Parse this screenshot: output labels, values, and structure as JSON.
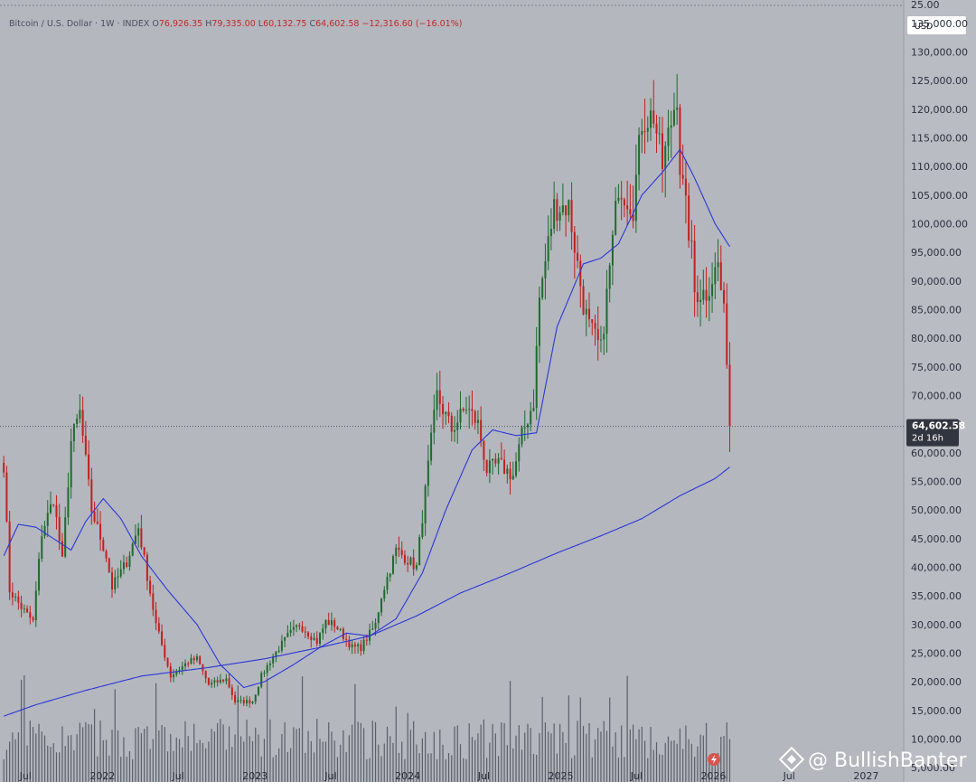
{
  "header": {
    "symbol": "Bitcoin / U.S. Dollar",
    "interval": "1W",
    "source": "INDEX",
    "open_label": "O",
    "open": "76,926.35",
    "high_label": "H",
    "high": "79,335.00",
    "low_label": "L",
    "low": "60,132.75",
    "close_label": "C",
    "close": "64,602.58",
    "change": "−12,316.60 (−16.01%)"
  },
  "currency_badge": "USD",
  "price_tag": {
    "price": "64,602.58",
    "countdown": "2d 16h"
  },
  "watermark": "@ BullishBanter",
  "colors": {
    "background": "#b4b7be",
    "axis_panel": "#b9bcc3",
    "up_candle": "#1e6b2d",
    "down_candle": "#c21f1f",
    "ma_line": "#2b36d9",
    "volume": "#3d414a",
    "price_tag": "#31353f",
    "header_value": "#c02a2a"
  },
  "icons": {
    "watermark_logo": "binance-diamond-icon",
    "replay": "lightning-icon"
  },
  "chart_data": {
    "type": "candlestick",
    "interval": "1W",
    "title": "Bitcoin / U.S. Dollar · 1W · INDEX",
    "ylim": [
      2500,
      137500
    ],
    "yticks": [
      5000,
      10000,
      15000,
      20000,
      25000,
      30000,
      35000,
      40000,
      45000,
      50000,
      55000,
      60000,
      65000,
      70000,
      75000,
      80000,
      85000,
      90000,
      95000,
      100000,
      105000,
      110000,
      115000,
      120000,
      125000,
      130000,
      135000
    ],
    "ytick_labels": [
      "5,000.00",
      "10,000.00",
      "15,000.00",
      "20,000.00",
      "25,000.00",
      "30,000.00",
      "35,000.00",
      "40,000.00",
      "45,000.00",
      "50,000.00",
      "55,000.00",
      "60,000.00",
      "65,000.00",
      "70,000.00",
      "75,000.00",
      "80,000.00",
      "85,000.00",
      "90,000.00",
      "95,000.00",
      "100,000.00",
      "105,000.00",
      "110,000.00",
      "115,000.00",
      "120,000.00",
      "125,000.00",
      "130,000.00",
      "135,000.00"
    ],
    "xlim": [
      "2021-05-01",
      "2027-04-01"
    ],
    "xticks": [
      {
        "date": "2021-07-01",
        "label": "Jul"
      },
      {
        "date": "2022-01-01",
        "label": "2022"
      },
      {
        "date": "2022-07-01",
        "label": "Jul"
      },
      {
        "date": "2023-01-01",
        "label": "2023"
      },
      {
        "date": "2023-07-01",
        "label": "Jul"
      },
      {
        "date": "2024-01-01",
        "label": "2024"
      },
      {
        "date": "2024-07-01",
        "label": "Jul"
      },
      {
        "date": "2025-01-01",
        "label": "2025"
      },
      {
        "date": "2025-07-01",
        "label": "Jul"
      },
      {
        "date": "2026-01-01",
        "label": "2026"
      },
      {
        "date": "2026-07-01",
        "label": "Jul"
      },
      {
        "date": "2027-01-01",
        "label": "2027"
      }
    ],
    "last_price": 64602.58,
    "price_anchors": [
      [
        "2021-05-10",
        58000
      ],
      [
        "2021-05-24",
        36000
      ],
      [
        "2021-06-21",
        33000
      ],
      [
        "2021-07-19",
        30500
      ],
      [
        "2021-08-09",
        46000
      ],
      [
        "2021-09-06",
        52000
      ],
      [
        "2021-09-27",
        41000
      ],
      [
        "2021-10-18",
        62000
      ],
      [
        "2021-11-08",
        67000
      ],
      [
        "2021-12-06",
        50000
      ],
      [
        "2022-01-10",
        42000
      ],
      [
        "2022-01-24",
        36500
      ],
      [
        "2022-02-28",
        41000
      ],
      [
        "2022-03-28",
        47000
      ],
      [
        "2022-05-09",
        30000
      ],
      [
        "2022-06-13",
        21000
      ],
      [
        "2022-07-25",
        23500
      ],
      [
        "2022-08-15",
        24000
      ],
      [
        "2022-09-12",
        19500
      ],
      [
        "2022-10-24",
        20500
      ],
      [
        "2022-11-14",
        16500
      ],
      [
        "2022-12-26",
        16600
      ],
      [
        "2023-01-16",
        21000
      ],
      [
        "2023-02-13",
        24500
      ],
      [
        "2023-03-20",
        28000
      ],
      [
        "2023-04-17",
        30000
      ],
      [
        "2023-05-29",
        27000
      ],
      [
        "2023-06-19",
        30500
      ],
      [
        "2023-07-10",
        30000
      ],
      [
        "2023-08-21",
        26000
      ],
      [
        "2023-09-11",
        26000
      ],
      [
        "2023-10-16",
        30000
      ],
      [
        "2023-10-30",
        35000
      ],
      [
        "2023-12-04",
        43000
      ],
      [
        "2024-01-22",
        40000
      ],
      [
        "2024-02-26",
        62000
      ],
      [
        "2024-03-11",
        70000
      ],
      [
        "2024-04-15",
        64000
      ],
      [
        "2024-05-20",
        68000
      ],
      [
        "2024-06-17",
        65000
      ],
      [
        "2024-07-08",
        57000
      ],
      [
        "2024-08-05",
        58000
      ],
      [
        "2024-09-09",
        56000
      ],
      [
        "2024-09-30",
        63000
      ],
      [
        "2024-10-28",
        69000
      ],
      [
        "2024-11-11",
        87000
      ],
      [
        "2024-12-16",
        103000
      ],
      [
        "2025-01-20",
        103000
      ],
      [
        "2025-02-24",
        86000
      ],
      [
        "2025-03-10",
        82000
      ],
      [
        "2025-04-07",
        78000
      ],
      [
        "2025-05-05",
        97000
      ],
      [
        "2025-05-19",
        107000
      ],
      [
        "2025-06-23",
        103000
      ],
      [
        "2025-07-14",
        118000
      ],
      [
        "2025-08-11",
        119000
      ],
      [
        "2025-09-01",
        110000
      ],
      [
        "2025-10-06",
        123000
      ],
      [
        "2025-10-13",
        110000
      ],
      [
        "2025-11-10",
        95000
      ],
      [
        "2025-11-17",
        88000
      ],
      [
        "2025-12-15",
        88000
      ],
      [
        "2026-01-12",
        93000
      ],
      [
        "2026-01-26",
        84000
      ],
      [
        "2026-02-02",
        77000
      ],
      [
        "2026-02-09",
        64602.58
      ]
    ],
    "ma_short_anchors": [
      [
        "2021-05-10",
        42000
      ],
      [
        "2021-06-14",
        47500
      ],
      [
        "2021-07-26",
        47000
      ],
      [
        "2021-09-06",
        45000
      ],
      [
        "2021-10-18",
        43000
      ],
      [
        "2021-11-22",
        48000
      ],
      [
        "2022-01-03",
        52000
      ],
      [
        "2022-02-14",
        48500
      ],
      [
        "2022-04-04",
        42000
      ],
      [
        "2022-06-06",
        36000
      ],
      [
        "2022-08-15",
        30000
      ],
      [
        "2022-10-10",
        23000
      ],
      [
        "2022-12-05",
        19000
      ],
      [
        "2023-01-23",
        20000
      ],
      [
        "2023-04-03",
        23000
      ],
      [
        "2023-06-05",
        26000
      ],
      [
        "2023-08-07",
        28500
      ],
      [
        "2023-10-02",
        28000
      ],
      [
        "2023-12-04",
        31000
      ],
      [
        "2024-02-05",
        39000
      ],
      [
        "2024-04-01",
        50000
      ],
      [
        "2024-06-03",
        60500
      ],
      [
        "2024-07-22",
        64000
      ],
      [
        "2024-09-16",
        63000
      ],
      [
        "2024-11-04",
        63500
      ],
      [
        "2024-12-23",
        82000
      ],
      [
        "2025-02-24",
        93000
      ],
      [
        "2025-04-07",
        94000
      ],
      [
        "2025-05-19",
        96500
      ],
      [
        "2025-07-14",
        105000
      ],
      [
        "2025-09-01",
        109000
      ],
      [
        "2025-10-13",
        113000
      ],
      [
        "2025-11-17",
        108000
      ],
      [
        "2026-01-05",
        100000
      ],
      [
        "2026-02-09",
        96000
      ]
    ],
    "ma_long_anchors": [
      [
        "2021-05-10",
        14000
      ],
      [
        "2021-07-26",
        16000
      ],
      [
        "2021-11-22",
        18500
      ],
      [
        "2022-04-04",
        21000
      ],
      [
        "2022-09-12",
        22500
      ],
      [
        "2023-01-23",
        24000
      ],
      [
        "2023-06-05",
        26000
      ],
      [
        "2023-10-02",
        28000
      ],
      [
        "2024-01-22",
        31500
      ],
      [
        "2024-05-06",
        35500
      ],
      [
        "2024-09-02",
        39000
      ],
      [
        "2024-12-23",
        42500
      ],
      [
        "2025-04-07",
        45500
      ],
      [
        "2025-07-14",
        48500
      ],
      [
        "2025-10-13",
        52500
      ],
      [
        "2026-01-05",
        55500
      ],
      [
        "2026-02-09",
        57500
      ]
    ],
    "volume_ylim": [
      0,
      20000
    ]
  }
}
